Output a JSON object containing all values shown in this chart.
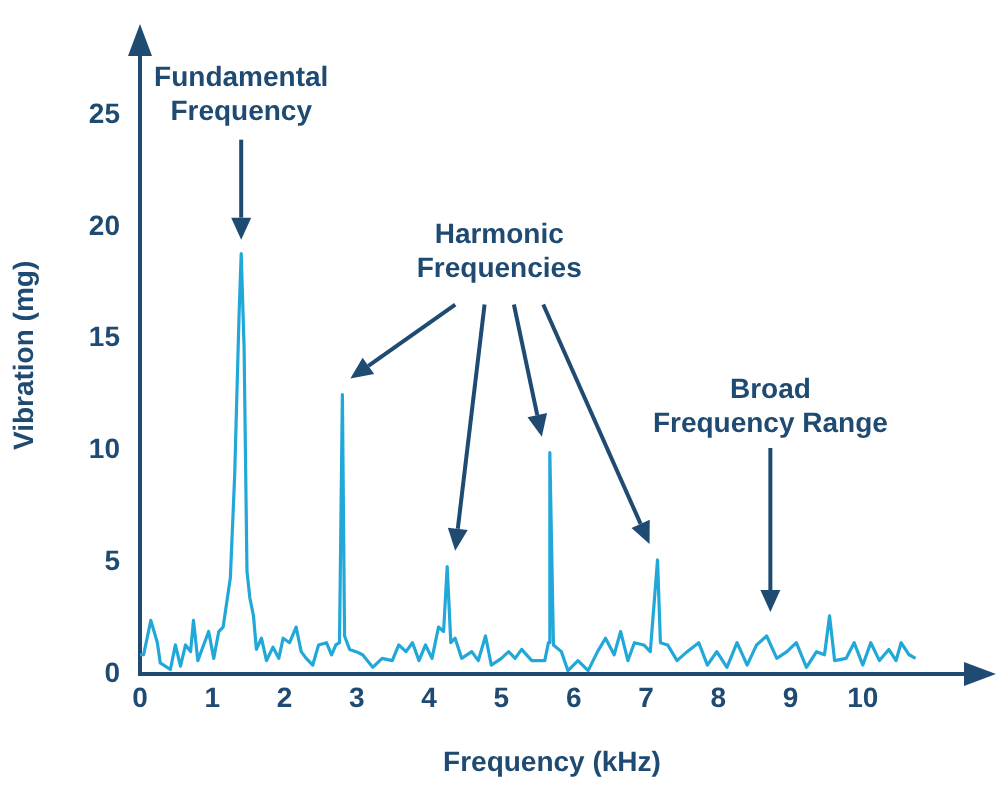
{
  "chart_data": {
    "type": "line",
    "xlabel": "Frequency (kHz)",
    "ylabel": "Vibration (mg)",
    "xlim": [
      0,
      11.4
    ],
    "xticks": [
      0,
      1,
      2,
      3,
      4,
      5,
      6,
      7,
      8,
      9,
      10
    ],
    "ylim": [
      0,
      28.5
    ],
    "yticks": [
      0,
      5,
      10,
      15,
      20,
      25
    ],
    "grid": false,
    "legend": false,
    "series": [
      {
        "color": "#21a8d8",
        "x": [
          0,
          0.05,
          0.15,
          0.24,
          0.28,
          0.42,
          0.49,
          0.56,
          0.63,
          0.7,
          0.74,
          0.8,
          0.88,
          0.95,
          1.02,
          1.09,
          1.15,
          1.25,
          1.31,
          1.37,
          1.4,
          1.44,
          1.48,
          1.52,
          1.57,
          1.61,
          1.68,
          1.75,
          1.84,
          1.92,
          1.98,
          2.07,
          2.16,
          2.23,
          2.3,
          2.39,
          2.47,
          2.58,
          2.65,
          2.71,
          2.76,
          2.8,
          2.83,
          2.9,
          2.99,
          3.08,
          3.22,
          3.35,
          3.49,
          3.58,
          3.68,
          3.77,
          3.86,
          3.95,
          4.04,
          4.13,
          4.2,
          4.25,
          4.3,
          4.36,
          4.45,
          4.59,
          4.68,
          4.78,
          4.86,
          5.0,
          5.1,
          5.19,
          5.28,
          5.42,
          5.6,
          5.65,
          5.67,
          5.72,
          5.83,
          5.92,
          6.06,
          6.2,
          6.33,
          6.44,
          6.56,
          6.65,
          6.75,
          6.84,
          6.97,
          7.06,
          7.16,
          7.2,
          7.3,
          7.43,
          7.57,
          7.73,
          7.85,
          7.98,
          8.12,
          8.26,
          8.4,
          8.53,
          8.67,
          8.81,
          8.95,
          9.08,
          9.22,
          9.36,
          9.47,
          9.54,
          9.61,
          9.77,
          9.88,
          10.0,
          10.11,
          10.23,
          10.36,
          10.46,
          10.53,
          10.64,
          10.73
        ],
        "values": [
          0.86,
          0.86,
          2.4,
          1.4,
          0.5,
          0.2,
          1.3,
          0.35,
          1.3,
          1.0,
          2.4,
          0.6,
          1.3,
          1.9,
          0.7,
          1.9,
          2.1,
          4.3,
          8.9,
          16,
          18.8,
          14.6,
          4.6,
          3.4,
          2.6,
          1.1,
          1.6,
          0.6,
          1.2,
          0.7,
          1.6,
          1.4,
          2.1,
          1.0,
          0.7,
          0.4,
          1.3,
          1.4,
          0.86,
          1.3,
          1.4,
          12.5,
          1.7,
          1.1,
          1.0,
          0.86,
          0.3,
          0.7,
          0.6,
          1.3,
          1.0,
          1.4,
          0.6,
          1.3,
          0.7,
          2.1,
          1.9,
          4.8,
          1.4,
          1.6,
          0.7,
          1.0,
          0.6,
          1.7,
          0.4,
          0.7,
          1.0,
          0.7,
          1.1,
          0.6,
          0.6,
          1.4,
          9.9,
          1.3,
          1.0,
          0.15,
          0.6,
          0.15,
          1.0,
          1.6,
          0.86,
          1.9,
          0.6,
          1.4,
          1.3,
          1.0,
          5.1,
          1.4,
          1.3,
          0.6,
          1.0,
          1.4,
          0.4,
          1.0,
          0.3,
          1.4,
          0.4,
          1.3,
          1.7,
          0.7,
          1.0,
          1.4,
          0.3,
          1.0,
          0.86,
          2.6,
          0.6,
          0.7,
          1.4,
          0.4,
          1.4,
          0.6,
          1.1,
          0.6,
          1.4,
          0.86,
          0.7
        ]
      }
    ],
    "annotations": [
      "Fundamental Frequency",
      "Harmonic Frequencies",
      "Broad Frequency Range"
    ]
  }
}
